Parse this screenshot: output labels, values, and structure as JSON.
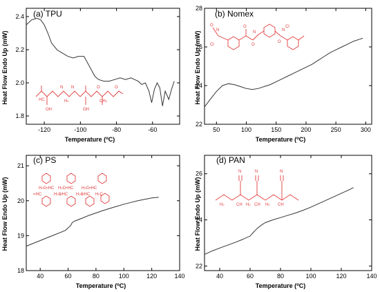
{
  "chart_data": [
    {
      "type": "line",
      "title": "(a) TPU",
      "xlabel": "Temperature (°C)",
      "ylabel": "Heat Flow Endo Up (mW)",
      "xlim": [
        -130,
        -45
      ],
      "ylim": [
        1.75,
        2.45
      ],
      "xticks": [
        -120,
        -100,
        -80,
        -60
      ],
      "yticks": [
        1.8,
        2.0,
        2.2,
        2.4
      ],
      "ytick_labels": [
        "1.8",
        "2.0",
        "2.2",
        "2.4"
      ],
      "series": [
        {
          "x": [
            -130,
            -127,
            -124,
            -122,
            -120,
            -118,
            -116,
            -113,
            -110,
            -107,
            -104,
            -101,
            -98,
            -96,
            -94,
            -92,
            -90,
            -87,
            -84,
            -81,
            -78,
            -75,
            -72,
            -70,
            -68,
            -66,
            -64,
            -62,
            -60.5,
            -59,
            -57.5,
            -56,
            -54.5,
            -53,
            -51,
            -49.5,
            -48
          ],
          "y": [
            2.35,
            2.38,
            2.39,
            2.38,
            2.35,
            2.3,
            2.24,
            2.2,
            2.18,
            2.16,
            2.15,
            2.16,
            2.16,
            2.12,
            2.08,
            2.04,
            2.02,
            2.01,
            2.01,
            2.02,
            2.03,
            2.02,
            2.03,
            2.02,
            2.01,
            1.99,
            2.0,
            1.95,
            1.88,
            1.96,
            2.0,
            1.97,
            1.86,
            1.95,
            1.9,
            1.96,
            2.01
          ]
        }
      ]
    },
    {
      "type": "line",
      "title": "(b) Nomex",
      "xlabel": "Temperature (°C)",
      "ylabel": "Heat Flow Endo Up (mW)",
      "xlim": [
        30,
        310
      ],
      "ylim": [
        22,
        28
      ],
      "xticks": [
        50,
        100,
        150,
        200,
        250,
        300
      ],
      "yticks": [
        22,
        24,
        26,
        28
      ],
      "ytick_labels": [
        "22",
        "24",
        "26",
        "28"
      ],
      "series": [
        {
          "x": [
            30,
            40,
            50,
            60,
            70,
            80,
            90,
            100,
            110,
            120,
            130,
            140,
            150,
            160,
            170,
            180,
            190,
            200,
            210,
            220,
            230,
            240,
            250,
            260,
            270,
            280,
            290,
            295
          ],
          "y": [
            22.9,
            23.3,
            23.7,
            24.0,
            24.1,
            24.05,
            23.95,
            23.85,
            23.8,
            23.85,
            23.95,
            24.05,
            24.2,
            24.35,
            24.5,
            24.65,
            24.8,
            24.95,
            25.1,
            25.3,
            25.5,
            25.7,
            25.85,
            26.0,
            26.15,
            26.3,
            26.4,
            26.45
          ]
        }
      ]
    },
    {
      "type": "line",
      "title": "(c) PS",
      "xlabel": "Temperature (°C)",
      "ylabel": "Heat Flow Endo Up (mW)",
      "xlim": [
        30,
        140
      ],
      "ylim": [
        18,
        21.3
      ],
      "xticks": [
        40,
        60,
        80,
        100,
        120,
        140
      ],
      "yticks": [
        18,
        19,
        20,
        21
      ],
      "ytick_labels": [
        "18",
        "19",
        "20",
        "21"
      ],
      "series": [
        {
          "x": [
            30,
            35,
            40,
            45,
            50,
            55,
            58,
            60,
            62,
            63,
            65,
            70,
            75,
            80,
            85,
            90,
            95,
            100,
            105,
            110,
            115,
            120,
            125
          ],
          "y": [
            18.7,
            18.78,
            18.86,
            18.94,
            19.02,
            19.1,
            19.15,
            19.22,
            19.3,
            19.38,
            19.42,
            19.5,
            19.58,
            19.65,
            19.72,
            19.78,
            19.84,
            19.9,
            19.95,
            20.0,
            20.04,
            20.08,
            20.1
          ]
        }
      ]
    },
    {
      "type": "line",
      "title": "(d) PAN",
      "xlabel": "Temperature (°C)",
      "ylabel": "Heat Flow Endo Up (mW)",
      "xlim": [
        30,
        140
      ],
      "ylim": [
        21.8,
        26.8
      ],
      "xticks": [
        40,
        60,
        80,
        100,
        120,
        140
      ],
      "yticks": [
        22,
        24,
        26
      ],
      "ytick_labels": [
        "22",
        "24",
        "26"
      ],
      "series": [
        {
          "x": [
            30,
            35,
            40,
            45,
            50,
            55,
            60,
            62,
            65,
            68,
            70,
            75,
            80,
            85,
            90,
            95,
            100,
            105,
            110,
            115,
            120,
            125,
            128
          ],
          "y": [
            22.5,
            22.65,
            22.78,
            22.9,
            23.02,
            23.15,
            23.3,
            23.45,
            23.65,
            23.8,
            23.88,
            24.0,
            24.1,
            24.2,
            24.3,
            24.42,
            24.55,
            24.7,
            24.85,
            25.0,
            25.15,
            25.3,
            25.4
          ]
        }
      ]
    }
  ]
}
